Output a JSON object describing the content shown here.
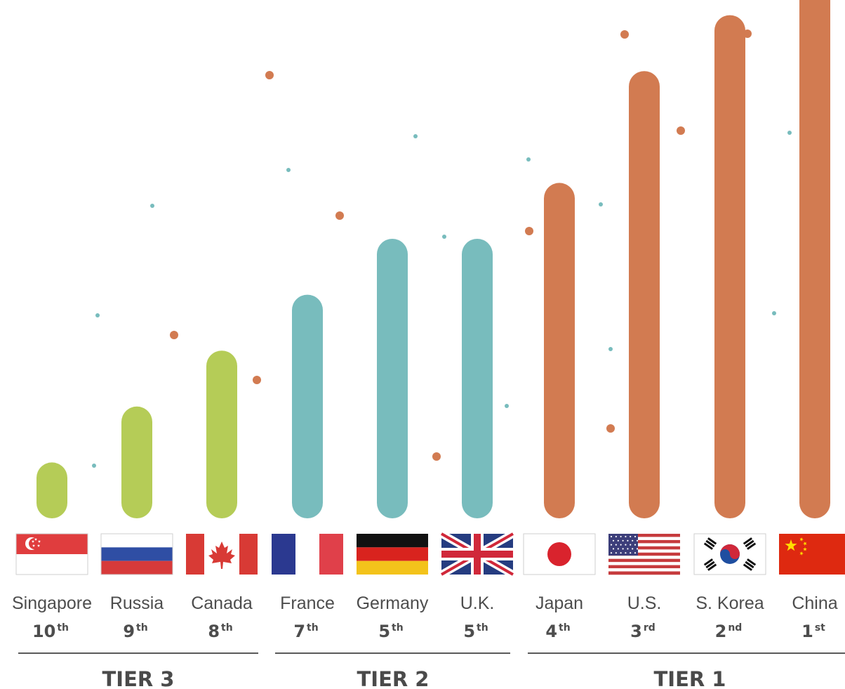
{
  "chart_data": {
    "type": "bar",
    "title": "",
    "xlabel": "",
    "ylabel": "",
    "ylim": [
      0,
      10
    ],
    "grid": false,
    "categories": [
      "Singapore",
      "Russia",
      "Canada",
      "France",
      "Germany",
      "U.K.",
      "Japan",
      "U.S.",
      "S. Korea",
      "China"
    ],
    "values": [
      1,
      2,
      3,
      4,
      5,
      5,
      6,
      8,
      9,
      10
    ],
    "ranks": [
      {
        "num": "10",
        "suffix": "th"
      },
      {
        "num": "9",
        "suffix": "th"
      },
      {
        "num": "8",
        "suffix": "th"
      },
      {
        "num": "7",
        "suffix": "th"
      },
      {
        "num": "5",
        "suffix": "th"
      },
      {
        "num": "5",
        "suffix": "th"
      },
      {
        "num": "4",
        "suffix": "th"
      },
      {
        "num": "3",
        "suffix": "rd"
      },
      {
        "num": "2",
        "suffix": "nd"
      },
      {
        "num": "1",
        "suffix": "st"
      }
    ],
    "flags": [
      "singapore-flag",
      "russia-flag",
      "canada-flag",
      "france-flag",
      "germany-flag",
      "uk-flag",
      "japan-flag",
      "us-flag",
      "south-korea-flag",
      "china-flag"
    ],
    "tiers": [
      {
        "label": "TIER 3",
        "members": [
          0,
          1,
          2
        ],
        "color": "#b5cc57"
      },
      {
        "label": "TIER 2",
        "members": [
          3,
          4,
          5
        ],
        "color": "#78bcbd"
      },
      {
        "label": "TIER 1",
        "members": [
          6,
          7,
          8,
          9
        ],
        "color": "#d27b51"
      }
    ]
  }
}
